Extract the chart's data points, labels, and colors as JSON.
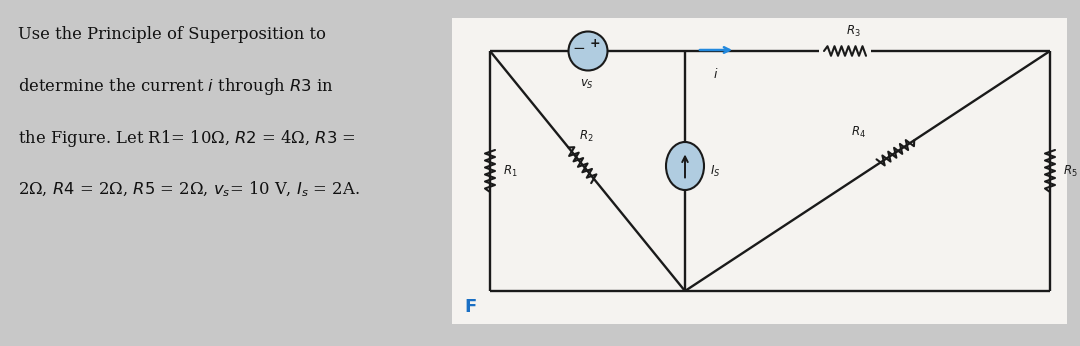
{
  "bg_color": "#c8c8c8",
  "circuit_bg": "#f5f3f0",
  "text_color": "#111111",
  "wire_color": "#1a1a1a",
  "blue_color": "#2288dd",
  "fig_width": 10.8,
  "fig_height": 3.46,
  "main_text_lines": [
    "Use the Principle of Superposition to",
    "determine the current $i$ through $R3$ in",
    "the Figure. Let R1= 10Ω, $R2$ = 4Ω, $R3$ =",
    "2Ω, $R4$ = 2Ω, $R5$ = 2Ω, $v_s$= 10 V, $I_s$ = 2A."
  ],
  "label_F": "F",
  "label_F_color": "#1a6fc4",
  "vs_fill": "#b0cce0",
  "is_fill": "#b0cce0"
}
